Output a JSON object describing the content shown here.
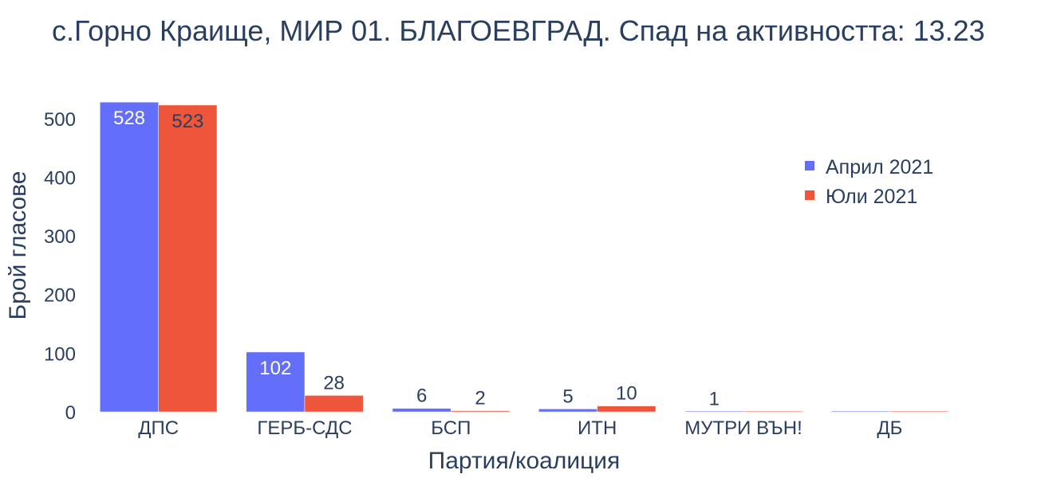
{
  "chart_data": {
    "type": "bar",
    "title": "с.Горно Краище, МИР 01. БЛАГОЕВГРАД. Спад на активността: 13.23",
    "xlabel": "Партия/коалиция",
    "ylabel": "Брой гласове",
    "categories": [
      "ДПС",
      "ГЕРБ-СДС",
      "БСП",
      "ИТН",
      "МУТРИ ВЪН!",
      "ДБ"
    ],
    "series": [
      {
        "name": "Април 2021",
        "color": "#636efa",
        "values": [
          528,
          102,
          6,
          5,
          1,
          0
        ],
        "labels": [
          "528",
          "102",
          "6",
          "5",
          "1",
          ""
        ]
      },
      {
        "name": "Юли 2021",
        "color": "#ef553b",
        "values": [
          523,
          28,
          2,
          10,
          0,
          0
        ],
        "labels": [
          "523",
          "28",
          "2",
          "10",
          "",
          ""
        ]
      }
    ],
    "ylim": [
      0,
      550
    ],
    "yticks": [
      0,
      100,
      200,
      300,
      400,
      500
    ],
    "legend_position": "top-right",
    "grid": false
  }
}
